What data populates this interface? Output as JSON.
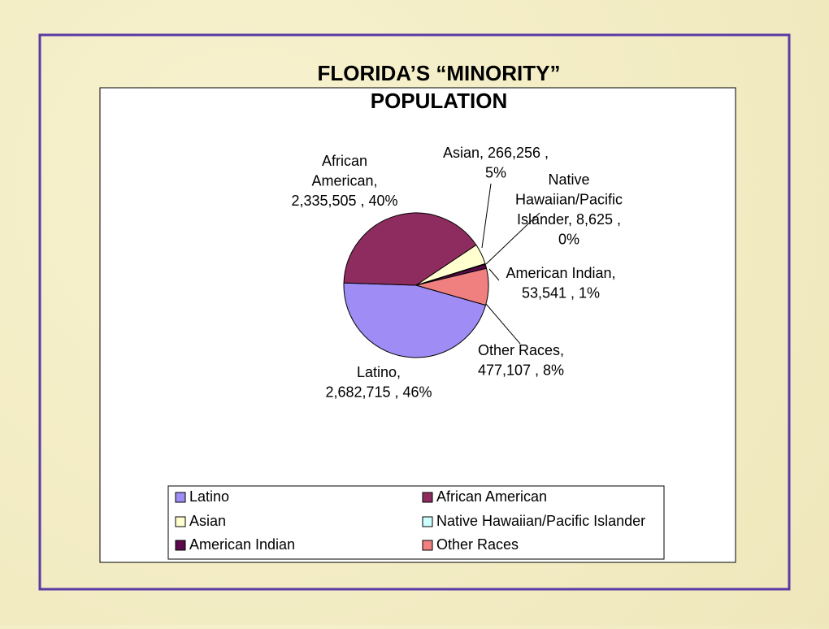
{
  "chart_data": {
    "type": "pie",
    "title": [
      "FLORIDA’S  “MINORITY”",
      "POPULATION"
    ],
    "categories": [
      "Latino",
      "African American",
      "Asian",
      "Native Hawaiian/Pacific Islander",
      "American Indian",
      "Other Races"
    ],
    "values": [
      2682715,
      2335505,
      266256,
      8625,
      53541,
      477107
    ],
    "value_labels": [
      [
        "Latino,",
        "2,682,715 , 46%"
      ],
      [
        "African",
        "American,",
        "2,335,505 , 40%"
      ],
      [
        "Asian,  266,256 ,",
        "5%"
      ],
      [
        "Native",
        "Hawaiian/Pacific",
        "Islander,  8,625 ,",
        "0%"
      ],
      [
        "American Indian,",
        "53,541 , 1%"
      ],
      [
        "Other Races,",
        "477,107 , 8%"
      ]
    ],
    "colors": [
      "#9f8cf5",
      "#8e2c5f",
      "#ffffd0",
      "#ccffff",
      "#5a0a4a",
      "#f08080"
    ],
    "legend": "bottom"
  }
}
